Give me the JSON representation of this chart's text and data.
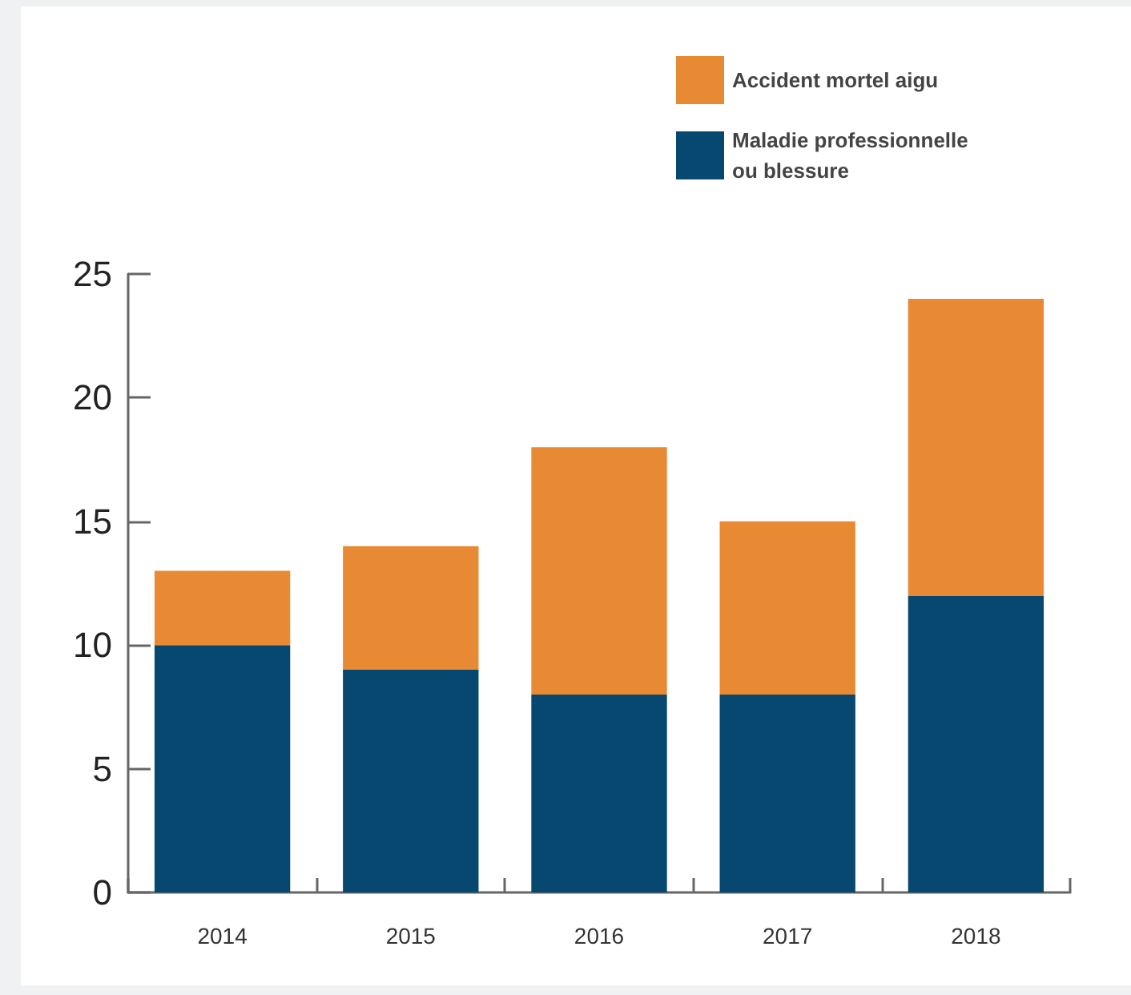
{
  "chart_data": {
    "type": "bar",
    "categories": [
      "2014",
      "2015",
      "2016",
      "2017",
      "2018"
    ],
    "series": [
      {
        "name": "Maladie professionnelle ou blessure",
        "color": "#06486f",
        "values": [
          10,
          9,
          8,
          8,
          12
        ]
      },
      {
        "name": "Accident mortel aigu",
        "color": "#e78a33",
        "values": [
          3,
          5,
          10,
          7,
          12
        ]
      }
    ],
    "stacked": true,
    "ylim": [
      0,
      25
    ],
    "yticks": [
      0,
      5,
      10,
      15,
      20,
      25
    ],
    "grid": false,
    "legend": "top right"
  }
}
